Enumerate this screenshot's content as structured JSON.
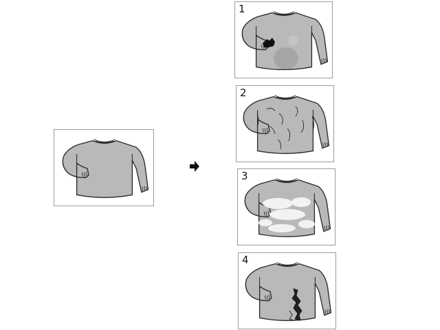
{
  "colors": {
    "sweater_fill": "#b9b9b9",
    "sweater_stroke": "#2a2a2a",
    "stain": "#111111",
    "arrow": "#111111",
    "panel_border": "#9a9a9a"
  },
  "icons": {
    "arrow": "arrow-right-icon"
  },
  "panels": [
    {
      "number": "",
      "condition": "original"
    },
    {
      "number": "1",
      "condition": "stained"
    },
    {
      "number": "2",
      "condition": "wrinkled"
    },
    {
      "number": "3",
      "condition": "faded"
    },
    {
      "number": "4",
      "condition": "torn"
    }
  ]
}
